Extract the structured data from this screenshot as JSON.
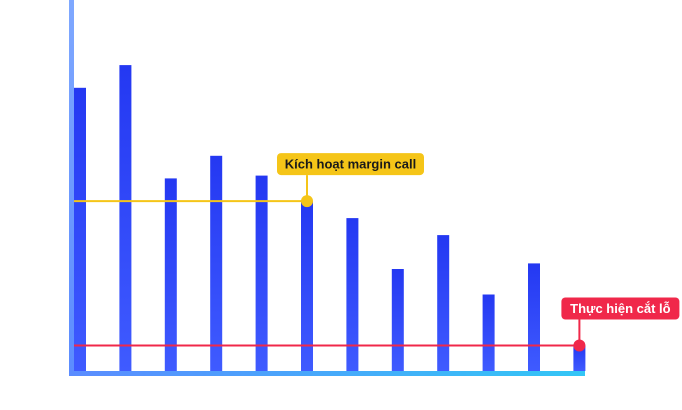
{
  "chart_data": {
    "type": "bar",
    "categories": [
      "",
      "",
      "",
      "",
      "",
      "",
      "",
      "",
      "",
      "",
      "",
      ""
    ],
    "values": [
      100,
      108,
      68,
      76,
      69,
      60,
      54,
      36,
      48,
      27,
      38,
      9
    ],
    "ylim": [
      0,
      131
    ],
    "title": "",
    "xlabel": "",
    "ylabel": "",
    "grid": false,
    "legend": "none",
    "annotations": [
      {
        "label": "Kích hoạt margin call",
        "y": 60,
        "color": "#f5c518",
        "text_color": "#1a1a1a"
      },
      {
        "label": "Thực hiện cắt lỗ",
        "y": 9,
        "color": "#f0284a",
        "text_color": "#ffffff"
      }
    ],
    "colors": {
      "bar_top": "#2438f2",
      "bar_bottom": "#3f5bff",
      "axis_start": "#5b8cff",
      "axis_end": "#33c6f5"
    }
  }
}
